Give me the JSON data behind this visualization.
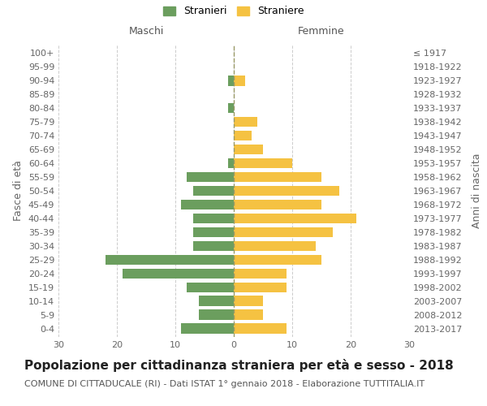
{
  "age_groups": [
    "100+",
    "95-99",
    "90-94",
    "85-89",
    "80-84",
    "75-79",
    "70-74",
    "65-69",
    "60-64",
    "55-59",
    "50-54",
    "45-49",
    "40-44",
    "35-39",
    "30-34",
    "25-29",
    "20-24",
    "15-19",
    "10-14",
    "5-9",
    "0-4"
  ],
  "birth_years": [
    "≤ 1917",
    "1918-1922",
    "1923-1927",
    "1928-1932",
    "1933-1937",
    "1938-1942",
    "1943-1947",
    "1948-1952",
    "1953-1957",
    "1958-1962",
    "1963-1967",
    "1968-1972",
    "1973-1977",
    "1978-1982",
    "1983-1987",
    "1988-1992",
    "1993-1997",
    "1998-2002",
    "2003-2007",
    "2008-2012",
    "2013-2017"
  ],
  "maschi": [
    0,
    0,
    1,
    0,
    1,
    0,
    0,
    0,
    1,
    8,
    7,
    9,
    7,
    7,
    7,
    22,
    19,
    8,
    6,
    6,
    9
  ],
  "femmine": [
    0,
    0,
    2,
    0,
    0,
    4,
    3,
    5,
    10,
    15,
    18,
    15,
    21,
    17,
    14,
    15,
    9,
    9,
    5,
    5,
    9
  ],
  "maschi_color": "#6b9e5e",
  "femmine_color": "#f5c242",
  "background_color": "#ffffff",
  "grid_color": "#cccccc",
  "title": "Popolazione per cittadinanza straniera per età e sesso - 2018",
  "subtitle": "COMUNE DI CITTADUCALE (RI) - Dati ISTAT 1° gennaio 2018 - Elaborazione TUTTITALIA.IT",
  "left_label": "Maschi",
  "right_label": "Femmine",
  "ylabel": "Fasce di età",
  "ylabel_right": "Anni di nascita",
  "legend_maschi": "Stranieri",
  "legend_femmine": "Straniere",
  "xlim": 30,
  "title_fontsize": 11,
  "subtitle_fontsize": 8,
  "tick_fontsize": 8,
  "label_fontsize": 9
}
